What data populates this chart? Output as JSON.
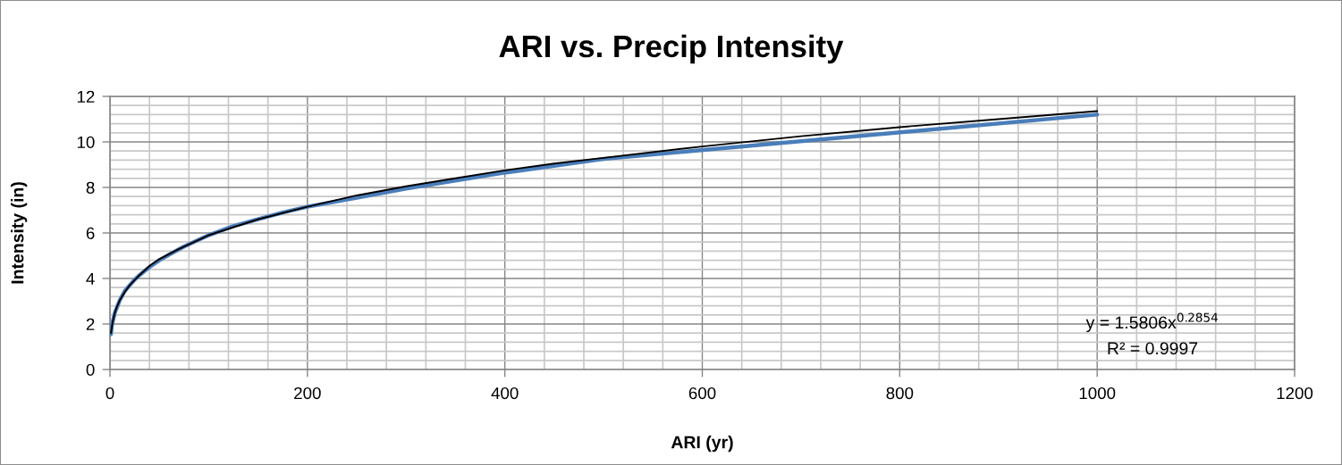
{
  "chart_data": {
    "type": "line",
    "title": "ARI vs. Precip Intensity",
    "xlabel": "ARI (yr)",
    "ylabel": "Intensity (in)",
    "series": [
      {
        "color": "#4a7ebb",
        "x": [
          1,
          2,
          5,
          10,
          15,
          20,
          25,
          30,
          40,
          50,
          60,
          75,
          100,
          125,
          150,
          175,
          200,
          250,
          300,
          350,
          400,
          450,
          500,
          1000
        ],
        "values": [
          1.55,
          1.95,
          2.5,
          3.05,
          3.45,
          3.7,
          3.95,
          4.15,
          4.5,
          4.8,
          5.05,
          5.4,
          5.9,
          6.3,
          6.6,
          6.9,
          7.15,
          7.55,
          7.95,
          8.3,
          8.65,
          8.95,
          9.25,
          11.2
        ]
      },
      {
        "color": "#000000",
        "x": [
          1,
          2,
          3,
          5,
          7,
          10,
          15,
          20,
          30,
          40,
          50,
          70,
          100,
          150,
          200,
          250,
          300,
          350,
          400,
          450,
          500,
          600,
          700,
          800,
          900,
          1000
        ],
        "values": [
          1.6,
          1.9,
          2.15,
          2.5,
          2.75,
          3.05,
          3.4,
          3.7,
          4.15,
          4.55,
          4.85,
          5.3,
          5.9,
          6.6,
          7.15,
          7.65,
          8.05,
          8.4,
          8.75,
          9.05,
          9.3,
          9.8,
          10.25,
          10.65,
          11.0,
          11.35
        ]
      }
    ],
    "xlim": [
      0,
      1200
    ],
    "ylim": [
      0,
      12
    ],
    "xticks": [
      0,
      {
        "value": 40,
        "label": null
      },
      {
        "value": 80,
        "label": null
      },
      {
        "value": 120,
        "label": null
      },
      {
        "value": 160,
        "label": null
      },
      200,
      {
        "value": 240,
        "label": null
      },
      {
        "value": 280,
        "label": null
      },
      {
        "value": 320,
        "label": null
      },
      {
        "value": 360,
        "label": null
      },
      400,
      {
        "value": 440,
        "label": null
      },
      {
        "value": 480,
        "label": null
      },
      {
        "value": 520,
        "label": null
      },
      {
        "value": 560,
        "label": null
      },
      600,
      {
        "value": 640,
        "label": null
      },
      {
        "value": 680,
        "label": null
      },
      {
        "value": 720,
        "label": null
      },
      {
        "value": 760,
        "label": null
      },
      800,
      {
        "value": 840,
        "label": null
      },
      {
        "value": 880,
        "label": null
      },
      {
        "value": 920,
        "label": null
      },
      {
        "value": 960,
        "label": null
      },
      1000,
      {
        "value": 1040,
        "label": null
      },
      {
        "value": 1080,
        "label": null
      },
      {
        "value": 1120,
        "label": null
      },
      {
        "value": 1160,
        "label": null
      },
      1200
    ],
    "yticks": [
      0,
      {
        "value": 0.4,
        "label": null
      },
      {
        "value": 0.8,
        "label": null
      },
      {
        "value": 1.2,
        "label": null
      },
      {
        "value": 1.6,
        "label": null
      },
      2,
      {
        "value": 2.4,
        "label": null
      },
      {
        "value": 2.8,
        "label": null
      },
      {
        "value": 3.2,
        "label": null
      },
      {
        "value": 3.6,
        "label": null
      },
      4,
      {
        "value": 4.4,
        "label": null
      },
      {
        "value": 4.8,
        "label": null
      },
      {
        "value": 5.2,
        "label": null
      },
      {
        "value": 5.6,
        "label": null
      },
      6,
      {
        "value": 6.4,
        "label": null
      },
      {
        "value": 6.8,
        "label": null
      },
      {
        "value": 7.2,
        "label": null
      },
      {
        "value": 7.6,
        "label": null
      },
      8,
      {
        "value": 8.4,
        "label": null
      },
      {
        "value": 8.8,
        "label": null
      },
      {
        "value": 9.2,
        "label": null
      },
      {
        "value": 9.6,
        "label": null
      },
      10,
      {
        "value": 10.4,
        "label": null
      },
      {
        "value": 10.8,
        "label": null
      },
      {
        "value": 11.2,
        "label": null
      },
      {
        "value": 11.6,
        "label": null
      },
      12
    ],
    "grid": true,
    "marker": "none",
    "line_style": "solid",
    "annotations": [
      "y = 1.5806x$^{0.2854}$",
      "R² = 0.9997"
    ]
  }
}
